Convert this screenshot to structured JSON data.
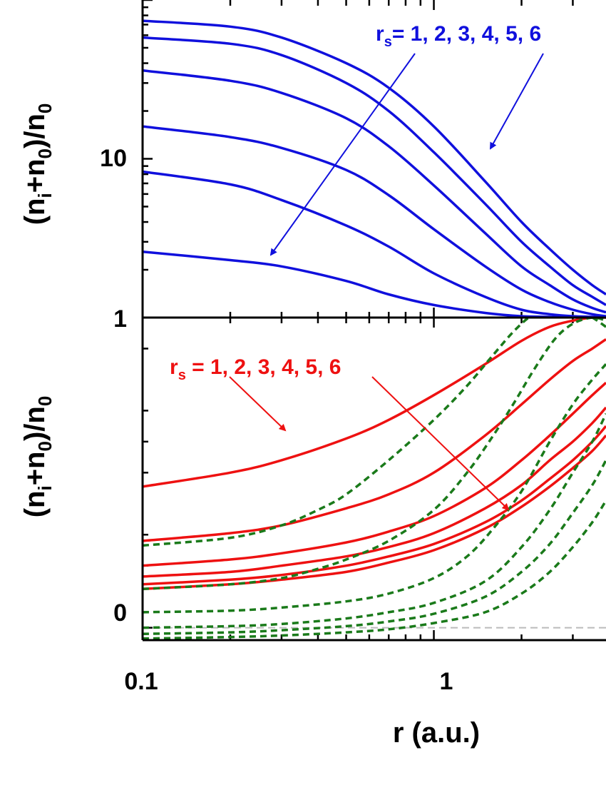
{
  "figure": {
    "xlabel": "r (a.u.)",
    "top_ylabel": {
      "open": "(n",
      "sub1": "i",
      "mid": "+n",
      "sub2": "0",
      "close": ")/n",
      "sub3": "0"
    },
    "bottom_ylabel": {
      "open": "(n",
      "sub1": "i",
      "mid": "+n",
      "sub2": "0",
      "close": ")/n",
      "sub3": "0"
    },
    "top_annotation": {
      "r": "r",
      "s": "s",
      "text": "= 1, 2, 3, 4, 5, 6"
    },
    "bottom_annotation": {
      "r": "r",
      "s": "s",
      "text": " = 1, 2, 3, 4, 5, 6"
    }
  },
  "colors": {
    "top_series": "#1010dd",
    "bottom_solid": "#ee1111",
    "bottom_dashed": "#1a7a1a",
    "axis": "#000000",
    "zero_line": "#bbbbbb"
  },
  "chart_data": [
    {
      "type": "line",
      "panel": "top",
      "xscale": "log",
      "yscale": "log",
      "xlim": [
        0.1,
        3.9
      ],
      "ylim": [
        1,
        100
      ],
      "xticks": [
        0.1,
        1
      ],
      "yticks": [
        1,
        10
      ],
      "ytick_labels": [
        "1",
        "10"
      ],
      "series": [
        {
          "x": [
            0.1,
            0.2,
            0.3,
            0.5,
            0.7,
            1.0,
            1.5,
            2.0,
            2.5,
            3.0,
            3.5,
            3.9
          ],
          "y": [
            2.6,
            2.3,
            2.1,
            1.7,
            1.4,
            1.2,
            1.07,
            1.02,
            1.01,
            1.0,
            1.0,
            1.0
          ]
        },
        {
          "x": [
            0.1,
            0.2,
            0.3,
            0.5,
            0.7,
            1.0,
            1.5,
            2.0,
            2.5,
            3.0,
            3.5,
            3.9
          ],
          "y": [
            8.3,
            6.9,
            5.5,
            3.8,
            2.8,
            1.9,
            1.35,
            1.12,
            1.05,
            1.02,
            1.01,
            1.0
          ]
        },
        {
          "x": [
            0.1,
            0.2,
            0.3,
            0.5,
            0.7,
            1.0,
            1.5,
            2.0,
            2.5,
            3.0,
            3.5,
            3.9
          ],
          "y": [
            16,
            13.7,
            11.7,
            8.5,
            5.9,
            3.6,
            2.1,
            1.5,
            1.25,
            1.12,
            1.05,
            1.02
          ]
        },
        {
          "x": [
            0.1,
            0.2,
            0.3,
            0.5,
            0.7,
            1.0,
            1.5,
            2.0,
            2.5,
            3.0,
            3.5,
            3.9
          ],
          "y": [
            36,
            31,
            26,
            18,
            12,
            6.8,
            3.4,
            2.1,
            1.6,
            1.3,
            1.15,
            1.08
          ]
        },
        {
          "x": [
            0.1,
            0.2,
            0.3,
            0.5,
            0.7,
            1.0,
            1.5,
            2.0,
            2.5,
            3.0,
            3.5,
            3.9
          ],
          "y": [
            58,
            53,
            45,
            30,
            20,
            11,
            5.2,
            3.0,
            2.1,
            1.6,
            1.35,
            1.2
          ]
        },
        {
          "x": [
            0.1,
            0.2,
            0.3,
            0.5,
            0.7,
            1.0,
            1.5,
            2.0,
            2.5,
            3.0,
            3.5,
            3.9
          ],
          "y": [
            74,
            68,
            58,
            40,
            28,
            16,
            7.2,
            4.0,
            2.7,
            2.0,
            1.6,
            1.4
          ]
        }
      ]
    },
    {
      "type": "line",
      "panel": "bottom",
      "xscale": "log",
      "xlim": [
        0.1,
        3.9
      ],
      "ylim": [
        -0.04,
        1
      ],
      "yticks": [
        0,
        1
      ],
      "ytick_labels": [
        "0",
        "1"
      ],
      "xtick_labels": [
        "0.1",
        "1"
      ],
      "xticks": [
        0.1,
        1
      ],
      "zero_line": 0,
      "series": [
        {
          "style": "solid",
          "x": [
            0.1,
            0.2,
            0.3,
            0.5,
            0.7,
            1.0,
            1.5,
            2.0,
            2.5,
            3.0,
            3.5,
            3.9
          ],
          "y": [
            0.455,
            0.5,
            0.54,
            0.61,
            0.67,
            0.75,
            0.85,
            0.925,
            0.97,
            0.99,
            1.0,
            1.0
          ]
        },
        {
          "style": "solid",
          "x": [
            0.1,
            0.2,
            0.3,
            0.5,
            0.7,
            1.0,
            1.5,
            2.0,
            2.5,
            3.0,
            3.5,
            3.9
          ],
          "y": [
            0.28,
            0.305,
            0.33,
            0.385,
            0.43,
            0.5,
            0.62,
            0.72,
            0.8,
            0.86,
            0.9,
            0.93
          ]
        },
        {
          "style": "solid",
          "x": [
            0.1,
            0.2,
            0.3,
            0.5,
            0.7,
            1.0,
            1.5,
            2.0,
            2.5,
            3.0,
            3.5,
            3.9
          ],
          "y": [
            0.2,
            0.22,
            0.24,
            0.275,
            0.31,
            0.36,
            0.45,
            0.54,
            0.62,
            0.69,
            0.75,
            0.79
          ]
        },
        {
          "style": "solid",
          "x": [
            0.1,
            0.2,
            0.3,
            0.5,
            0.7,
            1.0,
            1.5,
            2.0,
            2.5,
            3.0,
            3.5,
            3.9
          ],
          "y": [
            0.165,
            0.18,
            0.2,
            0.23,
            0.26,
            0.305,
            0.385,
            0.46,
            0.54,
            0.6,
            0.66,
            0.71
          ]
        },
        {
          "style": "solid",
          "x": [
            0.1,
            0.2,
            0.3,
            0.5,
            0.7,
            1.0,
            1.5,
            2.0,
            2.5,
            3.0,
            3.5,
            3.9
          ],
          "y": [
            0.14,
            0.155,
            0.17,
            0.2,
            0.23,
            0.27,
            0.34,
            0.41,
            0.48,
            0.54,
            0.6,
            0.65
          ]
        },
        {
          "style": "solid",
          "x": [
            0.1,
            0.2,
            0.3,
            0.5,
            0.7,
            1.0,
            1.5,
            2.0,
            2.5,
            3.0,
            3.5,
            3.9
          ],
          "y": [
            0.125,
            0.14,
            0.155,
            0.18,
            0.21,
            0.25,
            0.32,
            0.39,
            0.455,
            0.515,
            0.57,
            0.62
          ]
        },
        {
          "style": "dashed",
          "x": [
            0.1,
            0.2,
            0.3,
            0.4,
            0.5,
            0.7,
            1.0,
            1.3,
            1.6,
            1.9,
            2.2,
            2.6,
            3.0,
            3.5,
            3.9
          ],
          "y": [
            0.265,
            0.29,
            0.33,
            0.38,
            0.43,
            0.54,
            0.67,
            0.78,
            0.88,
            0.96,
            1.01,
            1.03,
            1.03,
            1.0,
            0.97
          ]
        },
        {
          "style": "dashed",
          "x": [
            0.1,
            0.2,
            0.3,
            0.4,
            0.5,
            0.7,
            1.0,
            1.3,
            1.6,
            1.9,
            2.2,
            2.6,
            3.0,
            3.5,
            3.9
          ],
          "y": [
            0.125,
            0.14,
            0.16,
            0.19,
            0.22,
            0.28,
            0.38,
            0.5,
            0.62,
            0.73,
            0.83,
            0.93,
            0.98,
            1.0,
            0.99
          ]
        },
        {
          "style": "dashed",
          "x": [
            0.1,
            0.2,
            0.3,
            0.5,
            0.7,
            1.0,
            1.3,
            1.6,
            2.0,
            2.5,
            3.0,
            3.5,
            3.9
          ],
          "y": [
            0.05,
            0.055,
            0.065,
            0.085,
            0.11,
            0.16,
            0.23,
            0.32,
            0.44,
            0.6,
            0.72,
            0.8,
            0.85
          ]
        },
        {
          "style": "dashed",
          "x": [
            0.1,
            0.2,
            0.3,
            0.5,
            0.7,
            1.0,
            1.5,
            2.0,
            2.5,
            3.0,
            3.5,
            3.9
          ],
          "y": [
            0.0,
            0.005,
            0.012,
            0.03,
            0.05,
            0.08,
            0.15,
            0.26,
            0.38,
            0.5,
            0.6,
            0.69
          ]
        },
        {
          "style": "dashed",
          "x": [
            0.1,
            0.2,
            0.3,
            0.5,
            0.7,
            1.0,
            1.5,
            2.0,
            2.5,
            3.0,
            3.5,
            3.9
          ],
          "y": [
            -0.02,
            -0.015,
            -0.008,
            0.005,
            0.02,
            0.045,
            0.1,
            0.18,
            0.27,
            0.37,
            0.46,
            0.54
          ]
        },
        {
          "style": "dashed",
          "x": [
            0.1,
            0.2,
            0.3,
            0.5,
            0.7,
            1.0,
            1.5,
            2.0,
            2.5,
            3.0,
            3.5,
            3.9
          ],
          "y": [
            -0.035,
            -0.03,
            -0.025,
            -0.015,
            -0.005,
            0.015,
            0.05,
            0.11,
            0.18,
            0.26,
            0.34,
            0.41
          ]
        }
      ]
    }
  ]
}
